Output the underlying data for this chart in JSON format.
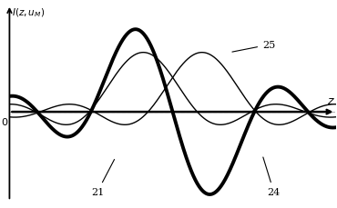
{
  "title": "I(z,u_M)",
  "xlabel": "z",
  "x_range": [
    -10,
    10
  ],
  "y_range": [
    -1.15,
    1.35
  ],
  "curve21_label": "21",
  "curve24_label": "24",
  "curve25_label": "25",
  "background": "#ffffff",
  "line_color_thin": "#000000",
  "line_color_thick": "#000000",
  "thin_lw": 1.0,
  "thick_lw": 2.8,
  "shift1": -1.8,
  "shift2": 1.8,
  "scale": 0.95,
  "dashed_color": "#aaaaaa",
  "thin_amp": 0.72,
  "thick_amp": 1.0
}
